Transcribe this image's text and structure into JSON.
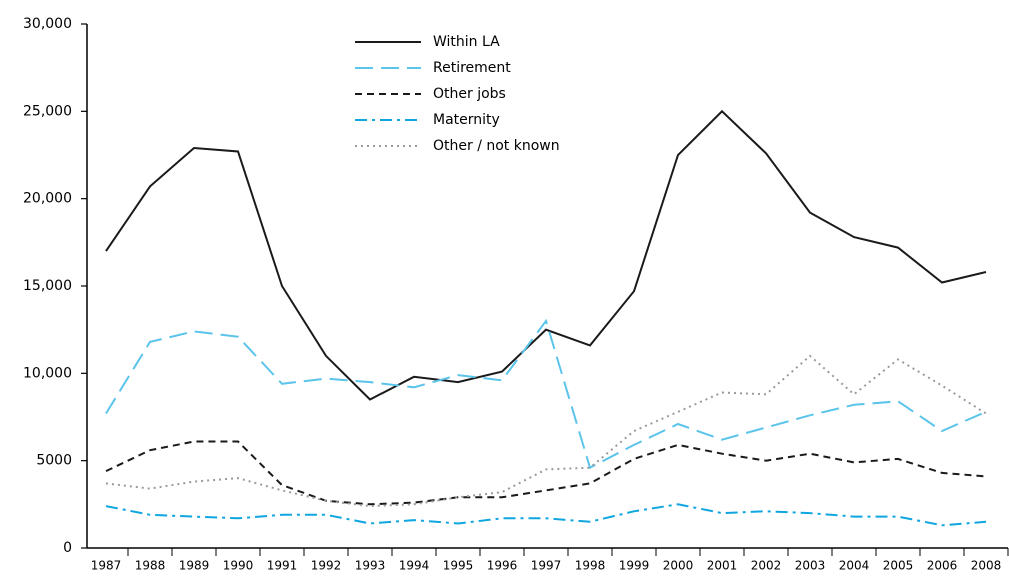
{
  "chart_data": {
    "type": "line",
    "categories": [
      "1987",
      "1988",
      "1989",
      "1990",
      "1991",
      "1992",
      "1993",
      "1994",
      "1995",
      "1996",
      "1997",
      "1998",
      "1999",
      "2000",
      "2001",
      "2002",
      "2003",
      "2004",
      "2005",
      "2006",
      "2008"
    ],
    "ylim": [
      0,
      30000
    ],
    "yticks": [
      0,
      5000,
      {
        "value": 10000,
        "label": "10,000"
      },
      {
        "value": 15000,
        "label": "15,000"
      },
      {
        "value": 20000,
        "label": "20,000"
      },
      {
        "value": 25000,
        "label": "25,000"
      },
      {
        "value": 30000,
        "label": "30,000"
      }
    ],
    "grid": false,
    "legend": "top-left",
    "series": [
      {
        "name": "Within LA",
        "color": "#1a1a1a",
        "dash": "solid",
        "values": [
          17000,
          20700,
          22900,
          22700,
          15000,
          11000,
          8500,
          9800,
          9500,
          10100,
          12500,
          11600,
          14700,
          22500,
          25000,
          22600,
          19200,
          17800,
          17200,
          15200,
          15800
        ]
      },
      {
        "name": "Retirement",
        "color": "#5bc4ea",
        "dash": "long-dash",
        "values": [
          7700,
          11800,
          12400,
          12100,
          9400,
          9700,
          9500,
          9200,
          9900,
          9600,
          13000,
          4600,
          5900,
          7100,
          6200,
          6900,
          7600,
          8200,
          8400,
          6700,
          7800
        ]
      },
      {
        "name": "Other jobs",
        "color": "#1a1a1a",
        "dash": "dash",
        "values": [
          4400,
          5600,
          6100,
          6100,
          3600,
          2700,
          2500,
          2600,
          2900,
          2900,
          3300,
          3700,
          5100,
          5900,
          5400,
          5000,
          5400,
          4900,
          5100,
          4300,
          4100
        ]
      },
      {
        "name": "Maternity",
        "color": "#0fa6e0",
        "dash": "dash-dot",
        "values": [
          2400,
          1900,
          1800,
          1700,
          1900,
          1900,
          1400,
          1600,
          1400,
          1700,
          1700,
          1500,
          2100,
          2500,
          2000,
          2100,
          2000,
          1800,
          1800,
          1300,
          1500
        ]
      },
      {
        "name": "Other / not known",
        "color": "#9a9a9a",
        "dash": "dot",
        "values": [
          3700,
          3400,
          3800,
          4000,
          3300,
          2700,
          2400,
          2500,
          2900,
          3200,
          4500,
          4600,
          6700,
          7800,
          8900,
          8800,
          11000,
          8800,
          10800,
          9300,
          7700
        ]
      }
    ]
  }
}
